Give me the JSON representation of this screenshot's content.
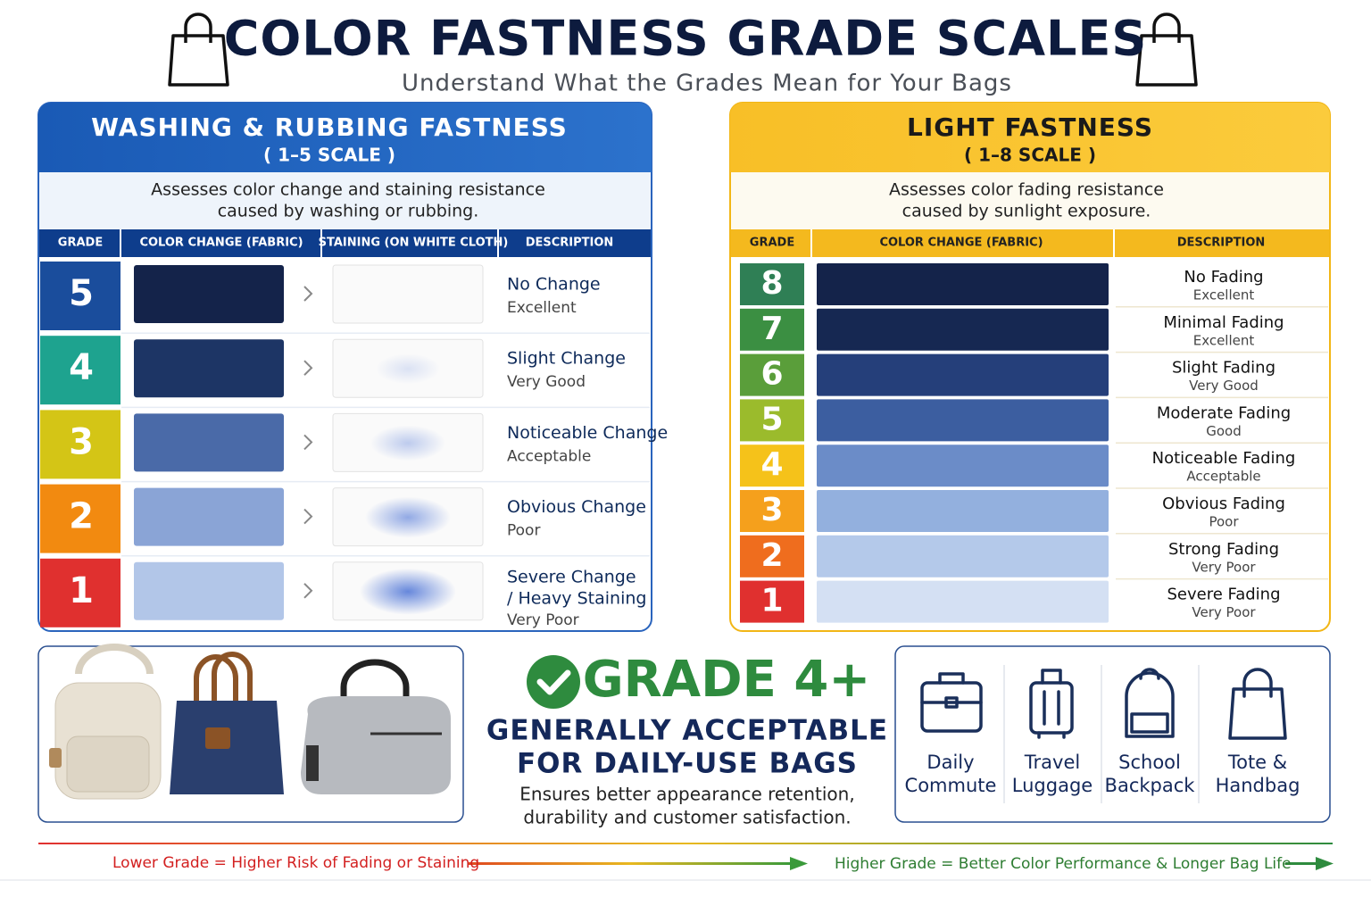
{
  "header": {
    "title": "COLOR FASTNESS GRADE SCALES",
    "subtitle": "Understand What the Grades Mean for Your Bags"
  },
  "washing": {
    "title": "WASHING & RUBBING FASTNESS",
    "scale": "( 1–5 SCALE )",
    "description": [
      "Assesses color change and staining resistance",
      "caused by washing or rubbing."
    ],
    "columns": [
      "GRADE",
      "COLOR CHANGE (FABRIC)",
      "STAINING (ON WHITE CLOTH)",
      "DESCRIPTION"
    ],
    "rows": [
      {
        "grade": 5,
        "change": [
          "No Change"
        ],
        "rating": "Excellent"
      },
      {
        "grade": 4,
        "change": [
          "Slight Change"
        ],
        "rating": "Very Good"
      },
      {
        "grade": 3,
        "change": [
          "Noticeable Change"
        ],
        "rating": "Acceptable"
      },
      {
        "grade": 2,
        "change": [
          "Obvious Change"
        ],
        "rating": "Poor"
      },
      {
        "grade": 1,
        "change": [
          "Severe Change",
          "/ Heavy Staining"
        ],
        "rating": "Very Poor"
      }
    ]
  },
  "light": {
    "title": "LIGHT FASTNESS",
    "scale": "( 1–8 SCALE )",
    "description": [
      "Assesses color fading resistance",
      "caused by sunlight exposure."
    ],
    "columns": [
      "GRADE",
      "COLOR CHANGE (FABRIC)",
      "DESCRIPTION"
    ],
    "rows": [
      {
        "grade": 8,
        "fading": "No Fading",
        "rating": "Excellent"
      },
      {
        "grade": 7,
        "fading": "Minimal Fading",
        "rating": "Excellent"
      },
      {
        "grade": 6,
        "fading": "Slight Fading",
        "rating": "Very Good"
      },
      {
        "grade": 5,
        "fading": "Moderate Fading",
        "rating": "Good"
      },
      {
        "grade": 4,
        "fading": "Noticeable Fading",
        "rating": "Acceptable"
      },
      {
        "grade": 3,
        "fading": "Obvious Fading",
        "rating": "Poor"
      },
      {
        "grade": 2,
        "fading": "Strong Fading",
        "rating": "Very Poor"
      },
      {
        "grade": 1,
        "fading": "Severe Fading",
        "rating": "Very Poor"
      }
    ]
  },
  "callout": {
    "title": "GRADE 4+",
    "headline": [
      "GENERALLY ACCEPTABLE",
      "FOR DAILY-USE BAGS"
    ],
    "note": [
      "Ensures better appearance retention,",
      "durability and customer satisfaction."
    ]
  },
  "uses": [
    {
      "label": [
        "Daily",
        "Commute"
      ]
    },
    {
      "label": [
        "Travel",
        "Luggage"
      ]
    },
    {
      "label": [
        "School",
        "Backpack"
      ]
    },
    {
      "label": [
        "Tote &",
        "Handbag"
      ]
    }
  ],
  "footer": {
    "left": "Lower Grade = Higher Risk of Fading or Staining",
    "right": "Higher Grade = Better Color Performance & Longer Bag Life"
  }
}
